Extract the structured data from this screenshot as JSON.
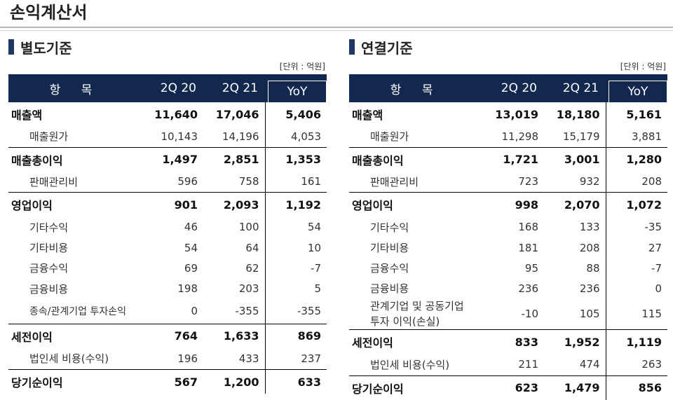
{
  "page_title": "손익계산서",
  "colors": {
    "header_bg": "#13284f",
    "marker": "#1f3864"
  },
  "sections": [
    {
      "title": "별도기준",
      "unit": "[단위 : 억원]",
      "headers": {
        "item": "항 목",
        "col1": "2Q 20",
        "col2": "2Q 21",
        "yoy": "YoY"
      },
      "rows": [
        {
          "label": "매출액",
          "v1": "11,640",
          "v2": "17,046",
          "yoy": "5,406"
        },
        {
          "label": "매출원가",
          "v1": "10,143",
          "v2": "14,196",
          "yoy": "4,053"
        },
        {
          "label": "매출총이익",
          "v1": "1,497",
          "v2": "2,851",
          "yoy": "1,353"
        },
        {
          "label": "판매관리비",
          "v1": "596",
          "v2": "758",
          "yoy": "161"
        },
        {
          "label": "영업이익",
          "v1": "901",
          "v2": "2,093",
          "yoy": "1,192"
        },
        {
          "label": "기타수익",
          "v1": "46",
          "v2": "100",
          "yoy": "54"
        },
        {
          "label": "기타비용",
          "v1": "54",
          "v2": "64",
          "yoy": "10"
        },
        {
          "label": "금융수익",
          "v1": "69",
          "v2": "62",
          "yoy": "-7"
        },
        {
          "label": "금융비용",
          "v1": "198",
          "v2": "203",
          "yoy": "5"
        },
        {
          "label": "종속/관계기업 투자손익",
          "v1": "0",
          "v2": "-355",
          "yoy": "-355"
        },
        {
          "label": "세전이익",
          "v1": "764",
          "v2": "1,633",
          "yoy": "869"
        },
        {
          "label": "법인세 비용(수익)",
          "v1": "196",
          "v2": "433",
          "yoy": "237"
        },
        {
          "label": "당기순이익",
          "v1": "567",
          "v2": "1,200",
          "yoy": "633"
        }
      ]
    },
    {
      "title": "연결기준",
      "unit": "[단위 : 억원]",
      "headers": {
        "item": "항 목",
        "col1": "2Q 20",
        "col2": "2Q 21",
        "yoy": "YoY"
      },
      "rows": [
        {
          "label": "매출액",
          "v1": "13,019",
          "v2": "18,180",
          "yoy": "5,161"
        },
        {
          "label": "매출원가",
          "v1": "11,298",
          "v2": "15,179",
          "yoy": "3,881"
        },
        {
          "label": "매출총이익",
          "v1": "1,721",
          "v2": "3,001",
          "yoy": "1,280"
        },
        {
          "label": "판매관리비",
          "v1": "723",
          "v2": "932",
          "yoy": "208"
        },
        {
          "label": "영업이익",
          "v1": "998",
          "v2": "2,070",
          "yoy": "1,072"
        },
        {
          "label": "기타수익",
          "v1": "168",
          "v2": "133",
          "yoy": "-35"
        },
        {
          "label": "기타비용",
          "v1": "181",
          "v2": "208",
          "yoy": "27"
        },
        {
          "label": "금융수익",
          "v1": "95",
          "v2": "88",
          "yoy": "-7"
        },
        {
          "label": "금융비용",
          "v1": "236",
          "v2": "236",
          "yoy": "0"
        },
        {
          "label": "관계기업 및 공동기업",
          "label2": "투자 이익(손실)",
          "v1": "-10",
          "v2": "105",
          "yoy": "115"
        },
        {
          "label": "세전이익",
          "v1": "833",
          "v2": "1,952",
          "yoy": "1,119"
        },
        {
          "label": "법인세 비용(수익)",
          "v1": "211",
          "v2": "474",
          "yoy": "263"
        },
        {
          "label": "당기순이익",
          "v1": "623",
          "v2": "1,479",
          "yoy": "856"
        }
      ]
    }
  ]
}
